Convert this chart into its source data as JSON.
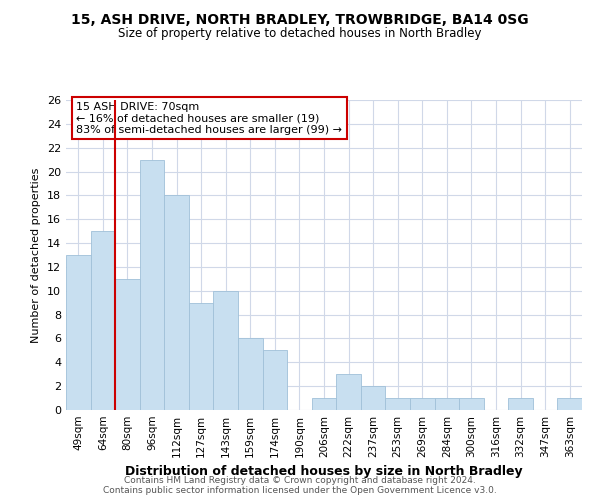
{
  "title1": "15, ASH DRIVE, NORTH BRADLEY, TROWBRIDGE, BA14 0SG",
  "title2": "Size of property relative to detached houses in North Bradley",
  "xlabel": "Distribution of detached houses by size in North Bradley",
  "ylabel": "Number of detached properties",
  "categories": [
    "49sqm",
    "64sqm",
    "80sqm",
    "96sqm",
    "112sqm",
    "127sqm",
    "143sqm",
    "159sqm",
    "174sqm",
    "190sqm",
    "206sqm",
    "222sqm",
    "237sqm",
    "253sqm",
    "269sqm",
    "284sqm",
    "300sqm",
    "316sqm",
    "332sqm",
    "347sqm",
    "363sqm"
  ],
  "values": [
    13,
    15,
    11,
    21,
    18,
    9,
    10,
    6,
    5,
    0,
    1,
    3,
    2,
    1,
    1,
    1,
    1,
    0,
    1,
    0,
    1
  ],
  "bar_color": "#c8dff0",
  "bar_edge_color": "#a0c0d8",
  "vline_color": "#cc0000",
  "annotation_title": "15 ASH DRIVE: 70sqm",
  "annotation_line1": "← 16% of detached houses are smaller (19)",
  "annotation_line2": "83% of semi-detached houses are larger (99) →",
  "annotation_box_color": "#ffffff",
  "annotation_box_edge": "#cc0000",
  "ylim": [
    0,
    26
  ],
  "yticks": [
    0,
    2,
    4,
    6,
    8,
    10,
    12,
    14,
    16,
    18,
    20,
    22,
    24,
    26
  ],
  "footer1": "Contains HM Land Registry data © Crown copyright and database right 2024.",
  "footer2": "Contains public sector information licensed under the Open Government Licence v3.0.",
  "bg_color": "#ffffff",
  "grid_color": "#d0d8e8"
}
